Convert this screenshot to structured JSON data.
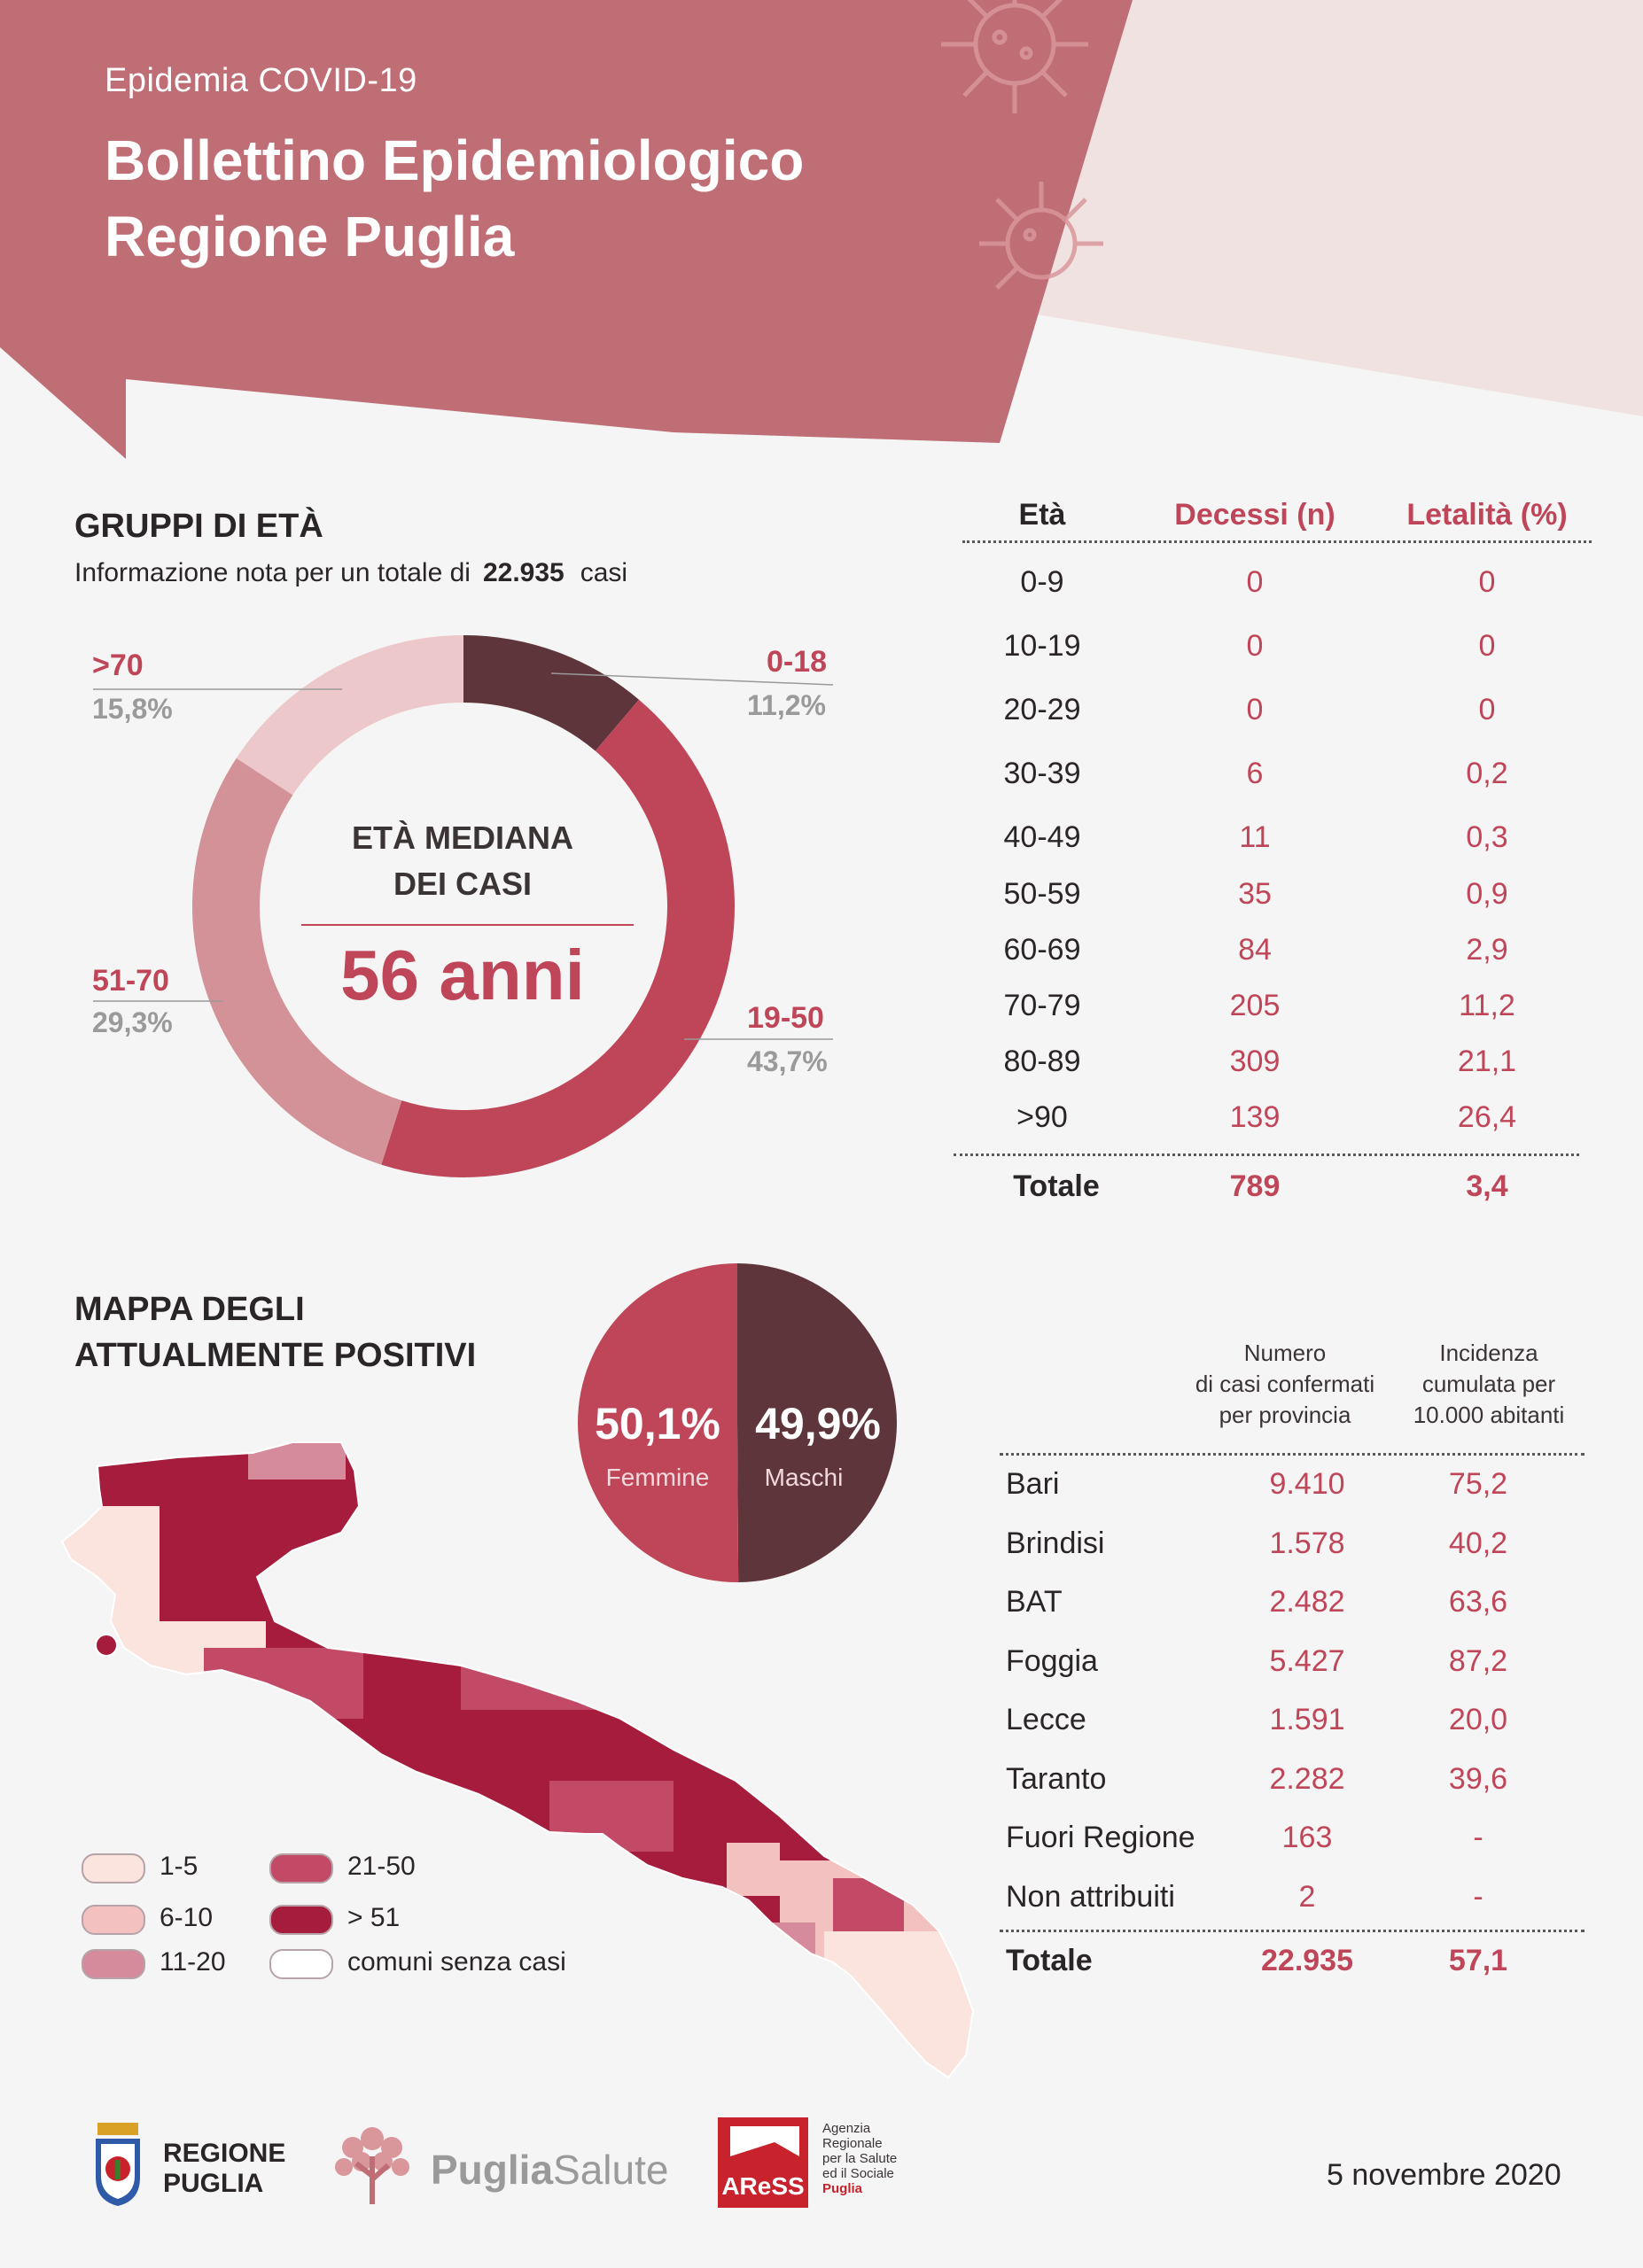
{
  "header": {
    "kicker": "Epidemia COVID-19",
    "title_line1": "Bollettino Epidemiologico",
    "title_line2": "Regione Puglia"
  },
  "colors": {
    "header_primary": "#c06e76",
    "header_secondary": "#f1e2e2",
    "accent_red": "#bf4659",
    "dark_brown": "#5e353b",
    "pink_light": "#ecc8cb",
    "pink_mid": "#d39297",
    "map_dark": "#a61c3c"
  },
  "age_groups": {
    "title": "GRUPPI DI ETÀ",
    "info_prefix": "Informazione nota per un totale di",
    "info_total": "22.935",
    "info_suffix": "casi",
    "center_title_line1": "ETÀ MEDIANA",
    "center_title_line2": "DEI CASI",
    "center_value": "56 anni"
  },
  "chart_data": {
    "type": "pie",
    "categories": [
      "0-18",
      "19-50",
      "51-70",
      ">70"
    ],
    "values": [
      11.2,
      43.7,
      29.3,
      15.8
    ],
    "value_labels": [
      "11,2%",
      "43,7%",
      "29,3%",
      "15,8%"
    ],
    "colors": [
      "#5e353b",
      "#bf4659",
      "#d39297",
      "#ecc8cb"
    ],
    "title": "",
    "unit": "%"
  },
  "deaths_table": {
    "headers": [
      "Età",
      "Decessi (n)",
      "Letalità (%)"
    ],
    "rows": [
      [
        "0-9",
        "0",
        "0"
      ],
      [
        "10-19",
        "0",
        "0"
      ],
      [
        "20-29",
        "0",
        "0"
      ],
      [
        "30-39",
        "6",
        "0,2"
      ],
      [
        "40-49",
        "11",
        "0,3"
      ],
      [
        "50-59",
        "35",
        "0,9"
      ],
      [
        "60-69",
        "84",
        "2,9"
      ],
      [
        "70-79",
        "205",
        "11,2"
      ],
      [
        "80-89",
        "309",
        "21,1"
      ],
      [
        ">90",
        "139",
        "26,4"
      ]
    ],
    "total": [
      "Totale",
      "789",
      "3,4"
    ]
  },
  "map": {
    "title_line1": "MAPPA DEGLI",
    "title_line2": "ATTUALMENTE POSITIVI",
    "legend": [
      {
        "label": "1-5",
        "color": "#fbe3de"
      },
      {
        "label": "6-10",
        "color": "#f4c1c1"
      },
      {
        "label": "11-20",
        "color": "#d68b9c"
      },
      {
        "label": "21-50",
        "color": "#c34a66"
      },
      {
        "label": "> 51",
        "color": "#a61c3c"
      },
      {
        "label": "comuni senza casi",
        "color": "#ffffff"
      }
    ]
  },
  "sex": {
    "female_pct": "50,1%",
    "female_label": "Femmine",
    "male_pct": "49,9%",
    "male_label": "Maschi",
    "female_value": 50.1,
    "male_value": 49.9
  },
  "province_table": {
    "header_cases": [
      "Numero",
      "di casi confermati",
      "per provincia"
    ],
    "header_incidence": [
      "Incidenza",
      "cumulata per",
      "10.000 abitanti"
    ],
    "rows": [
      [
        "Bari",
        "9.410",
        "75,2"
      ],
      [
        "Brindisi",
        "1.578",
        "40,2"
      ],
      [
        "BAT",
        "2.482",
        "63,6"
      ],
      [
        "Foggia",
        "5.427",
        "87,2"
      ],
      [
        "Lecce",
        "1.591",
        "20,0"
      ],
      [
        "Taranto",
        "2.282",
        "39,6"
      ],
      [
        "Fuori Regione",
        "163",
        "-"
      ],
      [
        "Non attribuiti",
        "2",
        "-"
      ]
    ],
    "total": [
      "Totale",
      "22.935",
      "57,1"
    ]
  },
  "footer": {
    "regione_line1": "REGIONE",
    "regione_line2": "PUGLIA",
    "puglia_salute_a": "Puglia",
    "puglia_salute_b": "Salute",
    "aress_name": "AReSS",
    "aress_desc": [
      "Agenzia",
      "Regionale",
      "per la Salute",
      "ed il Sociale",
      "Puglia"
    ],
    "date": "5 novembre 2020"
  }
}
